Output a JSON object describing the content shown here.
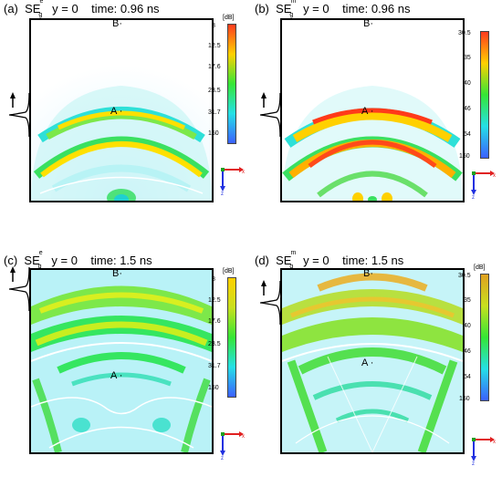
{
  "panels": [
    {
      "id": "a",
      "label": "(a)",
      "symbol": "SE",
      "sup": "e",
      "sub": "g",
      "y": "y = 0",
      "time": "time: 0.96 ns",
      "point_a": "A",
      "point_b": "B",
      "colorbar_unit": "[dB]",
      "colorbar_ticks": [
        "8",
        "12.5",
        "17.6",
        "23.5",
        "31.7",
        "150"
      ],
      "colorbar_colors": [
        "#ff3b1f",
        "#ffd000",
        "#35e635",
        "#25e0e6",
        "#3b60ff"
      ]
    },
    {
      "id": "b",
      "label": "(b)",
      "symbol": "SE",
      "sup": "m",
      "sub": "g",
      "y": "y = 0",
      "time": "time: 0.96 ns",
      "point_a": "A",
      "point_b": "B",
      "colorbar_unit": "",
      "colorbar_ticks": [
        "30.5",
        "35",
        "40",
        "46",
        "54",
        "150"
      ],
      "colorbar_colors": [
        "#ff3b1f",
        "#ffd000",
        "#35e635",
        "#25e0e6",
        "#3b60ff"
      ]
    },
    {
      "id": "c",
      "label": "(c)",
      "symbol": "SE",
      "sup": "e",
      "sub": "g",
      "y": "y = 0",
      "time": "time: 1.5 ns",
      "point_a": "A",
      "point_b": "B",
      "colorbar_unit": "[dB]",
      "colorbar_ticks": [
        "8",
        "12.5",
        "17.6",
        "23.5",
        "31.7",
        "150"
      ],
      "colorbar_colors": [
        "#ffd000",
        "#c8e01e",
        "#35e635",
        "#25e0e6",
        "#3b60ff"
      ]
    },
    {
      "id": "d",
      "label": "(d)",
      "symbol": "SE",
      "sup": "m",
      "sub": "g",
      "y": "y = 0",
      "time": "time: 1.5 ns",
      "point_a": "A",
      "point_b": "B",
      "colorbar_unit": "[dB]",
      "colorbar_ticks": [
        "30.5",
        "35",
        "40",
        "46",
        "54",
        "150"
      ],
      "colorbar_colors": [
        "#e0a020",
        "#c8e01e",
        "#35e635",
        "#25e0e6",
        "#3b60ff"
      ]
    }
  ],
  "axis_labels": {
    "x": "x",
    "z": "z"
  }
}
